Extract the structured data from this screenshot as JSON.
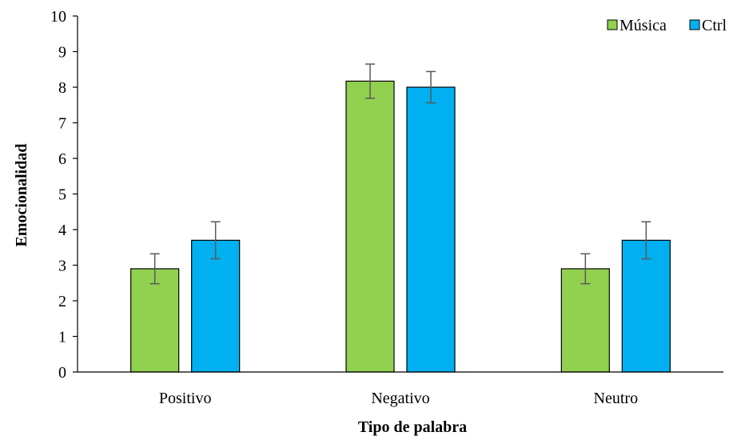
{
  "chart_data": {
    "type": "bar",
    "title": "",
    "xlabel": "Tipo de palabra",
    "ylabel": "Emocionalidad",
    "ylim": [
      0,
      10
    ],
    "yticks": [
      0,
      1,
      2,
      3,
      4,
      5,
      6,
      7,
      8,
      9,
      10
    ],
    "grid": false,
    "legend_position": "top-right",
    "categories": [
      "Positivo",
      "Negativo",
      "Neutro"
    ],
    "series": [
      {
        "name": "Música",
        "color": "#92D050",
        "values": [
          2.9,
          8.17,
          2.9
        ],
        "error": [
          0.42,
          0.48,
          0.42
        ]
      },
      {
        "name": "Ctrl",
        "color": "#00B0F0",
        "values": [
          3.7,
          8.0,
          3.7
        ],
        "error": [
          0.52,
          0.44,
          0.52
        ]
      }
    ]
  }
}
